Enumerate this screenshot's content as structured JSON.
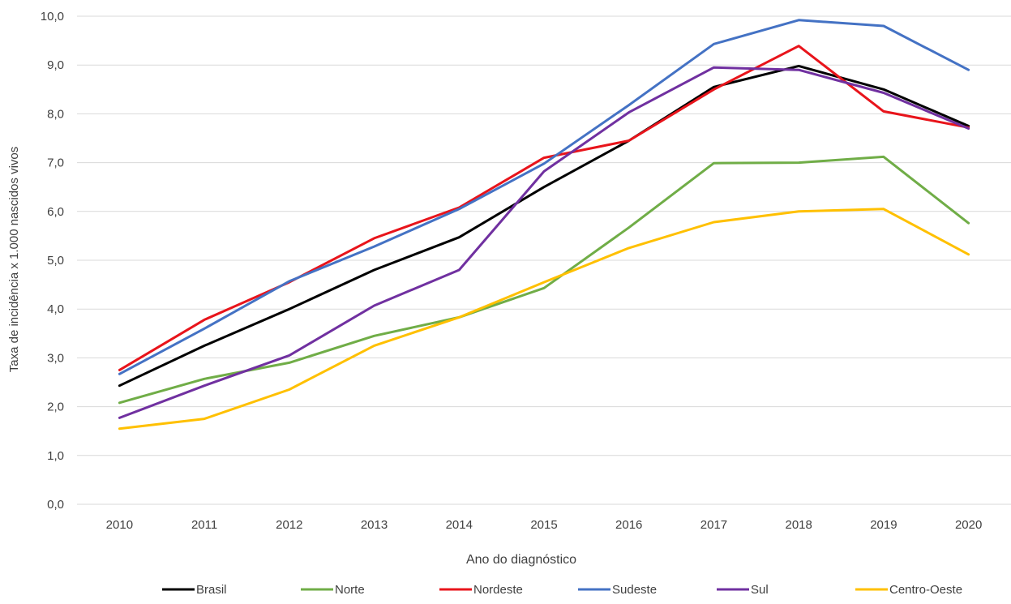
{
  "chart_data": {
    "type": "line",
    "title": "",
    "xlabel": "Ano do diagnóstico",
    "ylabel": "Taxa de incidência x 1.000 nascidos vivos",
    "categories": [
      "2010",
      "2011",
      "2012",
      "2013",
      "2014",
      "2015",
      "2016",
      "2017",
      "2018",
      "2019",
      "2020"
    ],
    "y_ticks": [
      "0,0",
      "1,0",
      "2,0",
      "3,0",
      "4,0",
      "5,0",
      "6,0",
      "7,0",
      "8,0",
      "9,0",
      "10,0"
    ],
    "ylim": [
      0,
      10
    ],
    "grid": "horizontal",
    "legend_position": "bottom",
    "series": [
      {
        "name": "Brasil",
        "color": "#000000",
        "values": [
          2.43,
          3.25,
          4.0,
          4.8,
          5.47,
          6.5,
          7.45,
          8.55,
          8.98,
          8.5,
          7.75
        ]
      },
      {
        "name": "Norte",
        "color": "#70ad47",
        "values": [
          2.08,
          2.57,
          2.9,
          3.45,
          3.83,
          4.43,
          5.67,
          6.99,
          7.0,
          7.12,
          5.76
        ]
      },
      {
        "name": "Nordeste",
        "color": "#e8141b",
        "values": [
          2.75,
          3.78,
          4.55,
          5.45,
          6.08,
          7.1,
          7.45,
          8.5,
          9.39,
          8.05,
          7.72
        ]
      },
      {
        "name": "Sudeste",
        "color": "#4472c4",
        "values": [
          2.67,
          3.6,
          4.57,
          5.28,
          6.05,
          6.98,
          8.18,
          9.43,
          9.92,
          9.8,
          8.9
        ]
      },
      {
        "name": "Sul",
        "color": "#7030a0",
        "values": [
          1.77,
          2.43,
          3.05,
          4.07,
          4.8,
          6.82,
          8.03,
          8.95,
          8.9,
          8.43,
          7.7
        ]
      },
      {
        "name": "Centro-Oeste",
        "color": "#ffc000",
        "values": [
          1.55,
          1.75,
          2.35,
          3.25,
          3.83,
          4.55,
          5.25,
          5.78,
          6.0,
          6.05,
          5.12
        ]
      }
    ]
  }
}
